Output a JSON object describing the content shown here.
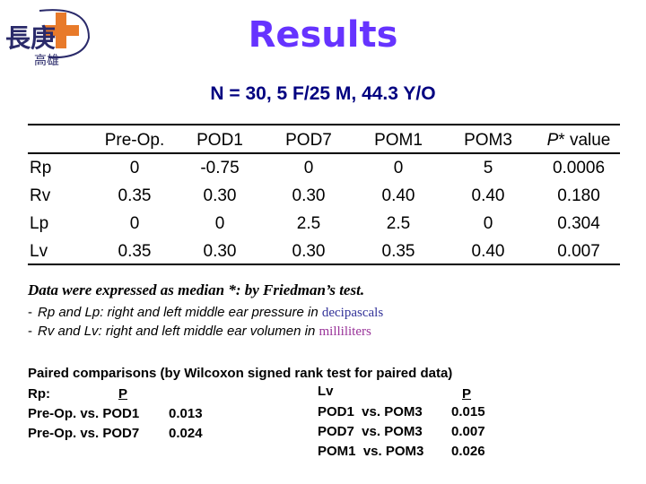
{
  "header": {
    "logo_text": "長庚",
    "logo_subtext": "高雄",
    "title": "Results",
    "subtitle": "N = 30, 5 F/25 M, 44.3 Y/O"
  },
  "table": {
    "columns": [
      "Pre-Op.",
      "POD1",
      "POD7",
      "POM1",
      "POM3"
    ],
    "pvalue_col": {
      "prefix": "P",
      "suffix": "* value"
    },
    "rows": [
      {
        "label": "Rp",
        "values": [
          "0",
          "-0.75",
          "0",
          "0",
          "5",
          "0.0006"
        ]
      },
      {
        "label": "Rv",
        "values": [
          "0.35",
          "0.30",
          "0.30",
          "0.40",
          "0.40",
          "0.180"
        ]
      },
      {
        "label": "Lp",
        "values": [
          "0",
          "0",
          "2.5",
          "2.5",
          "0",
          "0.304"
        ]
      },
      {
        "label": "Lv",
        "values": [
          "0.35",
          "0.30",
          "0.30",
          "0.35",
          "0.40",
          "0.007"
        ]
      }
    ]
  },
  "notes": {
    "main": "Data were expressed as median *: by Friedman’s test.",
    "line1_text": "Rp and Lp: right and left middle ear pressure in ",
    "line1_unit": "decipascals",
    "line1_unit_color": "#333399",
    "line2_text": "Rv and Lv: right and left middle ear volumen in ",
    "line2_unit": "milliliters",
    "line2_unit_color": "#993399",
    "dash": "-"
  },
  "paired": {
    "heading": "Paired comparisons (by Wilcoxon signed rank test for paired data)",
    "left_label": "Rp:",
    "left_p_header": "P",
    "left_rows": [
      {
        "comparison": "Pre-Op. vs. POD1",
        "p": "0.013"
      },
      {
        "comparison": "Pre-Op. vs. POD7",
        "p": "0.024"
      }
    ],
    "right_label": "Lv",
    "right_p_header": "P",
    "right_rows": [
      {
        "comparison": "POD1  vs. POM3",
        "p": "0.015"
      },
      {
        "comparison": "POD7  vs. POM3",
        "p": "0.007"
      },
      {
        "comparison": "POM1  vs. POM3",
        "p": "0.026"
      }
    ]
  },
  "colors": {
    "title": "#6633ff",
    "subtitle": "#000080",
    "logo_cross": "#e87a2a",
    "logo_text": "#2a2a6a"
  }
}
